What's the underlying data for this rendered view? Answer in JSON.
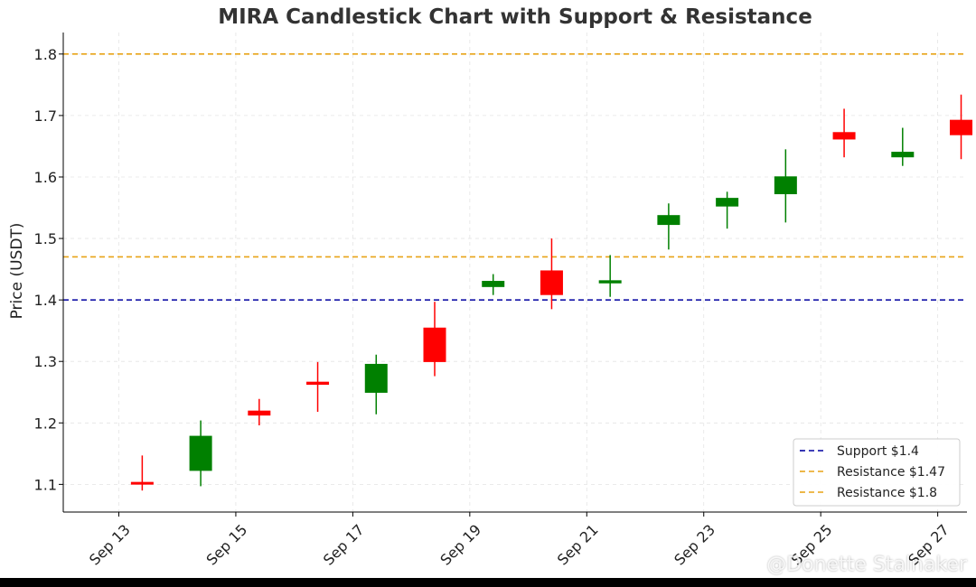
{
  "chart_data": {
    "type": "candlestick",
    "title": "MIRA Candlestick Chart with Support & Resistance",
    "ylabel": "Price (USDT)",
    "xlabel": "",
    "ylim": [
      1.055,
      1.835
    ],
    "xlim": [
      -0.95,
      14.5
    ],
    "yticks": [
      1.1,
      1.2,
      1.3,
      1.4,
      1.5,
      1.6,
      1.7,
      1.8
    ],
    "xticks": [
      {
        "pos": 0,
        "label": "Sep 13"
      },
      {
        "pos": 2,
        "label": "Sep 15"
      },
      {
        "pos": 4,
        "label": "Sep 17"
      },
      {
        "pos": 6,
        "label": "Sep 19"
      },
      {
        "pos": 8,
        "label": "Sep 21"
      },
      {
        "pos": 10,
        "label": "Sep 23"
      },
      {
        "pos": 12,
        "label": "Sep 25"
      },
      {
        "pos": 14,
        "label": "Sep 27"
      }
    ],
    "grid": true,
    "legend_position": "bottom-right",
    "up_color": "#008000",
    "down_color": "#ff0000",
    "candles": [
      {
        "open": 1.104,
        "high": 1.147,
        "low": 1.09,
        "close": 1.102
      },
      {
        "open": 1.122,
        "high": 1.204,
        "low": 1.097,
        "close": 1.179
      },
      {
        "open": 1.22,
        "high": 1.239,
        "low": 1.196,
        "close": 1.212
      },
      {
        "open": 1.267,
        "high": 1.299,
        "low": 1.218,
        "close": 1.262
      },
      {
        "open": 1.249,
        "high": 1.311,
        "low": 1.214,
        "close": 1.296
      },
      {
        "open": 1.355,
        "high": 1.397,
        "low": 1.276,
        "close": 1.299
      },
      {
        "open": 1.421,
        "high": 1.442,
        "low": 1.408,
        "close": 1.431
      },
      {
        "open": 1.448,
        "high": 1.5,
        "low": 1.385,
        "close": 1.408
      },
      {
        "open": 1.427,
        "high": 1.473,
        "low": 1.405,
        "close": 1.432
      },
      {
        "open": 1.522,
        "high": 1.557,
        "low": 1.482,
        "close": 1.538
      },
      {
        "open": 1.552,
        "high": 1.576,
        "low": 1.516,
        "close": 1.566
      },
      {
        "open": 1.572,
        "high": 1.645,
        "low": 1.526,
        "close": 1.601
      },
      {
        "open": 1.673,
        "high": 1.711,
        "low": 1.632,
        "close": 1.661
      },
      {
        "open": 1.632,
        "high": 1.68,
        "low": 1.618,
        "close": 1.641
      },
      {
        "open": 1.693,
        "high": 1.734,
        "low": 1.629,
        "close": 1.668
      }
    ],
    "lines": [
      {
        "name": "Support $1.4",
        "value": 1.4,
        "color": "#0000a0"
      },
      {
        "name": "Resistance $1.47",
        "value": 1.47,
        "color": "#e8a317"
      },
      {
        "name": "Resistance $1.8",
        "value": 1.8,
        "color": "#e8a317"
      }
    ]
  },
  "watermark": "@Donette Stalnaker"
}
